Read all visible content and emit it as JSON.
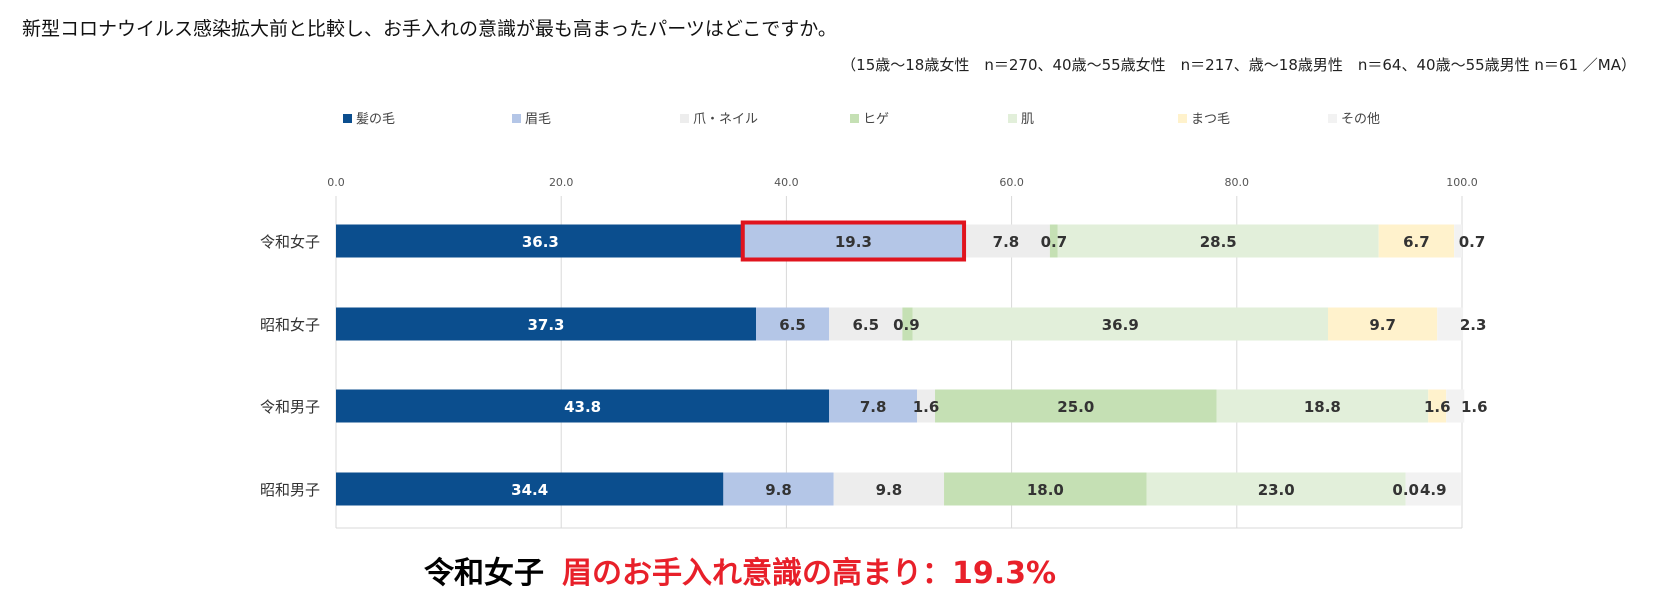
{
  "title": "新型コロナウイルス感染拡大前と比較し、お手入れの意識が最も高まったパーツはどこですか。",
  "note": "（15歳～18歳女性　n＝270、40歳～55歳女性　n＝217、歳～18歳男性　n＝64、40歳～55歳男性 n＝61 ／MA）",
  "caption": {
    "group": "令和女子",
    "highlight": "眉のお手入れ意識の高まり：19.3%"
  },
  "colors": {
    "highlight_border": "#e0141e",
    "caption_red": "#e8202a",
    "grid": "#d9d9d9"
  },
  "chart_data": {
    "type": "bar",
    "orientation": "horizontal",
    "stacked": true,
    "xlim": [
      0,
      100
    ],
    "xticks": [
      "0.0",
      "20.0",
      "40.0",
      "60.0",
      "80.0",
      "100.0"
    ],
    "grid": true,
    "legend_position": "top",
    "categories": [
      "令和女子",
      "昭和女子",
      "令和男子",
      "昭和男子"
    ],
    "series": [
      {
        "name": "髪の毛",
        "color": "#0b4e8e",
        "label_color": "#ffffff",
        "values": [
          36.3,
          37.3,
          43.8,
          34.4
        ],
        "labels": [
          "36.3",
          "37.3",
          "43.8",
          "34.4"
        ]
      },
      {
        "name": "眉毛",
        "color": "#b4c6e7",
        "label_color": "#333333",
        "values": [
          19.3,
          6.5,
          7.8,
          9.8
        ],
        "labels": [
          "19.3",
          "6.5",
          "7.8",
          "9.8"
        ]
      },
      {
        "name": "爪・ネイル",
        "color": "#ededed",
        "label_color": "#333333",
        "values": [
          7.8,
          6.5,
          1.6,
          9.8
        ],
        "labels": [
          "7.8",
          "6.5",
          "1.6",
          "9.8"
        ]
      },
      {
        "name": "ヒゲ",
        "color": "#c5e0b4",
        "label_color": "#333333",
        "values": [
          0.7,
          0.9,
          25.0,
          18.0
        ],
        "labels": [
          "0.7",
          "0.9",
          "25.0",
          "18.0"
        ]
      },
      {
        "name": "肌",
        "color": "#e2efda",
        "label_color": "#333333",
        "values": [
          28.5,
          36.9,
          18.8,
          23.0
        ],
        "labels": [
          "28.5",
          "36.9",
          "18.8",
          "23.0"
        ]
      },
      {
        "name": "まつ毛",
        "color": "#fff2cc",
        "label_color": "#333333",
        "values": [
          6.7,
          9.7,
          1.6,
          0.0
        ],
        "labels": [
          "6.7",
          "9.7",
          "1.6",
          "0.0"
        ]
      },
      {
        "name": "その他",
        "color": "#f2f2f2",
        "label_color": "#333333",
        "values": [
          0.7,
          2.3,
          1.6,
          4.9
        ],
        "labels": [
          "0.7",
          "2.3",
          "1.6",
          "4.9"
        ]
      }
    ],
    "highlight": {
      "category": "令和女子",
      "series": "眉毛"
    }
  }
}
